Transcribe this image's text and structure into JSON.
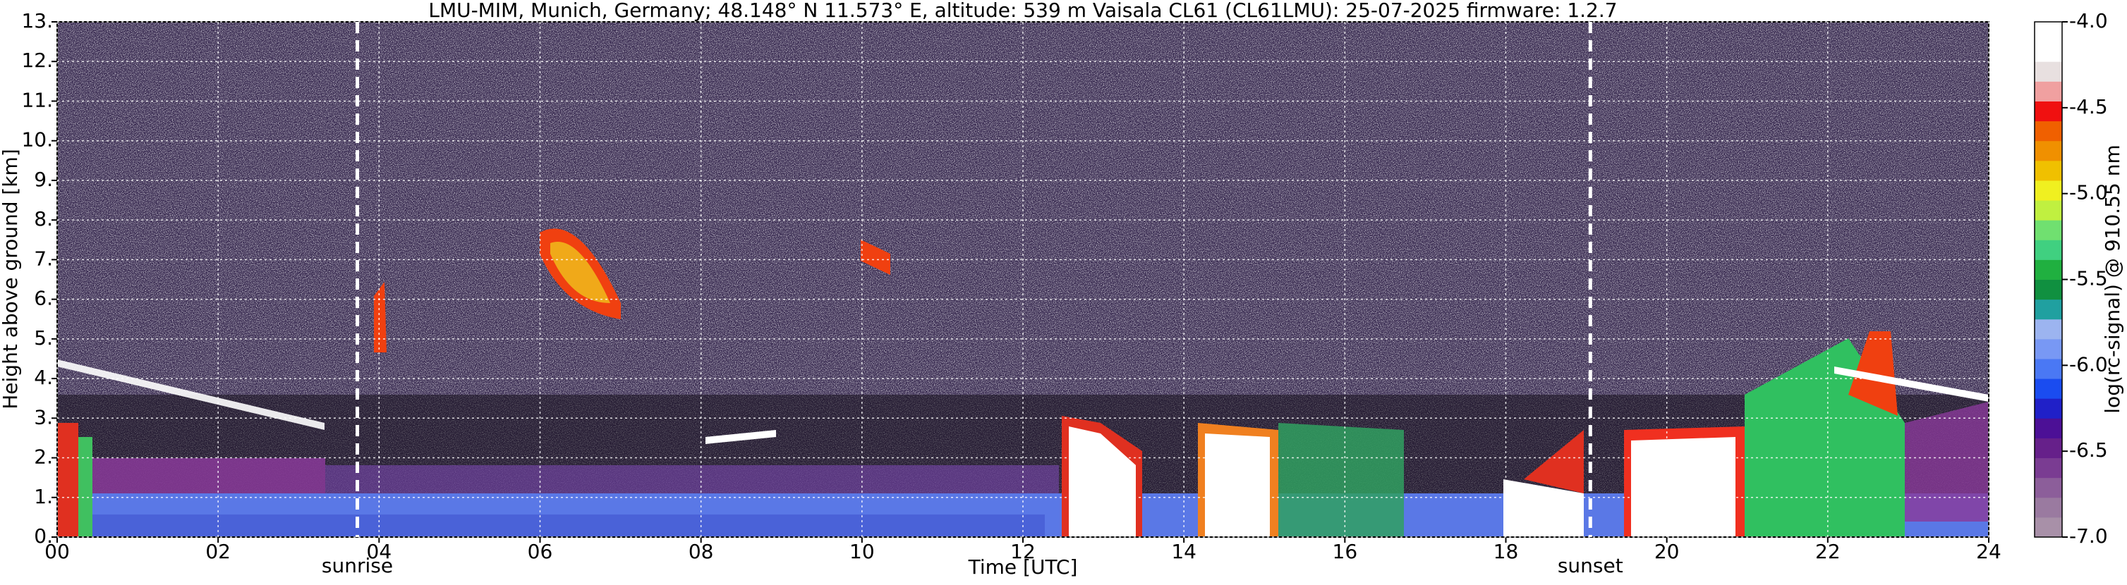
{
  "chart_data": {
    "type": "heatmap",
    "title": "LMU-MIM, Munich, Germany; 48.148° N 11.573° E, altitude: 539 m    Vaisala CL61 (CL61LMU): 25-07-2025    firmware: 1.2.7",
    "x_label": "Time [UTC]",
    "y_label": "Height above ground [km]",
    "xlim": [
      0,
      24
    ],
    "xticks": [
      {
        "value": 0,
        "label": "00"
      },
      {
        "value": 2,
        "label": "02"
      },
      {
        "value": 4,
        "label": "04"
      },
      {
        "value": 6,
        "label": "06"
      },
      {
        "value": 8,
        "label": "08"
      },
      10,
      12,
      14,
      16,
      18,
      20,
      22,
      24
    ],
    "ylim": [
      0,
      13
    ],
    "yticks": [
      {
        "value": 0,
        "label": "0."
      },
      {
        "value": 1,
        "label": "1."
      },
      {
        "value": 2,
        "label": "2."
      },
      {
        "value": 3,
        "label": "3."
      },
      {
        "value": 4,
        "label": "4."
      },
      {
        "value": 5,
        "label": "5."
      },
      {
        "value": 6,
        "label": "6."
      },
      {
        "value": 7,
        "label": "7."
      },
      {
        "value": 8,
        "label": "8."
      },
      {
        "value": 9,
        "label": "9."
      },
      {
        "value": 10,
        "label": "10."
      },
      {
        "value": 11,
        "label": "11."
      },
      {
        "value": 12,
        "label": "12."
      },
      {
        "value": 13,
        "label": "13."
      }
    ],
    "grid": true,
    "annotations": [
      {
        "text": "sunrise",
        "x": 3.73
      },
      {
        "text": "sunset",
        "x": 19.05
      }
    ],
    "colorbar": {
      "label": "log(rc-signal) @ 910.55 nm",
      "lim": [
        -7.0,
        -4.0
      ],
      "ticks": [
        {
          "value": -7.0,
          "label": "-7.0"
        },
        -6.5,
        {
          "value": -6.0,
          "label": "-6.0"
        },
        -5.5,
        {
          "value": -5.0,
          "label": "-5.0"
        },
        -4.5,
        {
          "value": -4.0,
          "label": "-4.0"
        }
      ],
      "colors": [
        "#a890a8",
        "#9a7aa0",
        "#8c5e9a",
        "#7a3c92",
        "#66208a",
        "#4c1096",
        "#2020c8",
        "#1a4cf0",
        "#4a78f4",
        "#7898f4",
        "#9cb4f0",
        "#20a0a0",
        "#109040",
        "#20b040",
        "#40d080",
        "#70e070",
        "#c0f040",
        "#f0f020",
        "#f0c000",
        "#f09000",
        "#f06000",
        "#f01010",
        "#f0a0a0",
        "#e8e0e0",
        "#ffffff",
        "#ffffff"
      ]
    }
  }
}
